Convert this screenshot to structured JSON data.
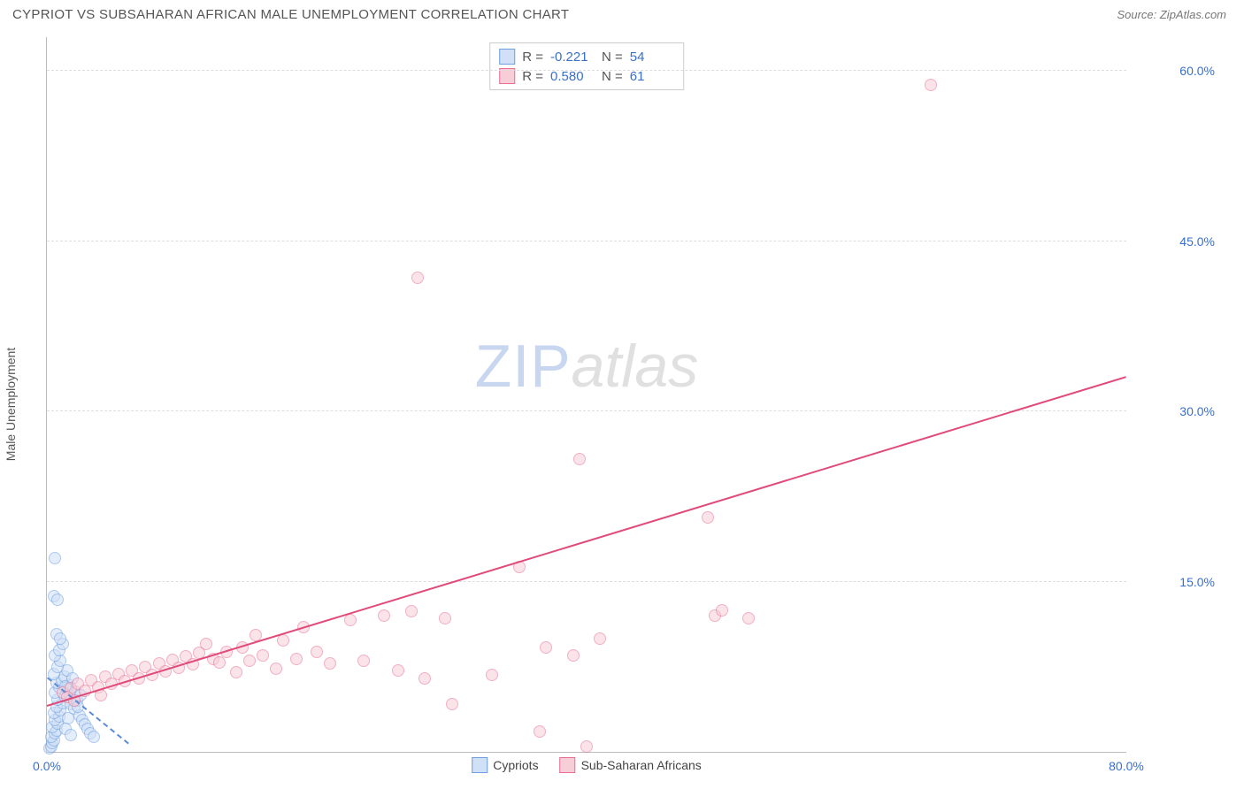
{
  "title": "CYPRIOT VS SUBSAHARAN AFRICAN MALE UNEMPLOYMENT CORRELATION CHART",
  "source_label": "Source: ZipAtlas.com",
  "ylabel": "Male Unemployment",
  "watermark": {
    "part1": "ZIP",
    "part2": "atlas"
  },
  "chart": {
    "type": "scatter",
    "xlim": [
      0,
      80
    ],
    "ylim": [
      0,
      63
    ],
    "xticks": [
      {
        "v": 0,
        "label": "0.0%"
      },
      {
        "v": 80,
        "label": "80.0%"
      }
    ],
    "yticks": [
      {
        "v": 15,
        "label": "15.0%"
      },
      {
        "v": 30,
        "label": "30.0%"
      },
      {
        "v": 45,
        "label": "45.0%"
      },
      {
        "v": 60,
        "label": "60.0%"
      }
    ],
    "background_color": "#ffffff",
    "grid_color": "#dddddd",
    "marker_radius": 7,
    "marker_border_width": 1.2,
    "series": [
      {
        "name": "Cypriots",
        "fill": "#cfe0f7",
        "stroke": "#6f9fe0",
        "fill_opacity": 0.55,
        "R_label": "R =",
        "R": "-0.221",
        "N_label": "N =",
        "N": "54",
        "trend": {
          "x1": 0,
          "y1": 6.3,
          "x2": 6,
          "y2": 0.5,
          "color": "#5b8ad6",
          "dash": true
        },
        "points": [
          [
            0.2,
            0.3
          ],
          [
            0.3,
            0.5
          ],
          [
            0.4,
            0.8
          ],
          [
            0.5,
            1.0
          ],
          [
            0.3,
            1.3
          ],
          [
            0.6,
            1.6
          ],
          [
            0.7,
            1.9
          ],
          [
            0.4,
            2.2
          ],
          [
            0.8,
            2.5
          ],
          [
            0.6,
            2.8
          ],
          [
            0.9,
            3.1
          ],
          [
            0.5,
            3.4
          ],
          [
            1.0,
            3.7
          ],
          [
            0.7,
            4.0
          ],
          [
            1.2,
            4.3
          ],
          [
            0.8,
            4.6
          ],
          [
            1.3,
            4.9
          ],
          [
            0.6,
            5.2
          ],
          [
            1.5,
            5.5
          ],
          [
            0.9,
            5.7
          ],
          [
            1.6,
            5.9
          ],
          [
            0.7,
            6.1
          ],
          [
            1.8,
            4.2
          ],
          [
            1.1,
            6.3
          ],
          [
            2.0,
            3.8
          ],
          [
            1.3,
            6.6
          ],
          [
            0.5,
            6.9
          ],
          [
            1.5,
            7.2
          ],
          [
            0.8,
            7.5
          ],
          [
            1.7,
            5.0
          ],
          [
            1.0,
            8.0
          ],
          [
            2.2,
            4.5
          ],
          [
            0.6,
            8.5
          ],
          [
            1.4,
            5.8
          ],
          [
            0.9,
            9.0
          ],
          [
            1.2,
            9.5
          ],
          [
            0.7,
            10.4
          ],
          [
            1.0,
            10.0
          ],
          [
            0.5,
            13.7
          ],
          [
            0.8,
            13.4
          ],
          [
            0.6,
            17.1
          ],
          [
            2.4,
            3.2
          ],
          [
            2.6,
            2.8
          ],
          [
            2.8,
            2.4
          ],
          [
            3.0,
            2.0
          ],
          [
            3.2,
            1.6
          ],
          [
            3.5,
            1.3
          ],
          [
            1.9,
            6.5
          ],
          [
            1.6,
            3.0
          ],
          [
            2.1,
            5.3
          ],
          [
            2.3,
            4.0
          ],
          [
            1.4,
            2.0
          ],
          [
            1.8,
            1.5
          ],
          [
            2.5,
            5.0
          ]
        ]
      },
      {
        "name": "Sub-Saharan Africans",
        "fill": "#f7cdd8",
        "stroke": "#e86f93",
        "fill_opacity": 0.55,
        "R_label": "R =",
        "R": "0.580",
        "N_label": "N =",
        "N": "61",
        "trend": {
          "x1": 0,
          "y1": 4.0,
          "x2": 80,
          "y2": 33.0,
          "color": "#e14b7a",
          "dash": false
        },
        "points": [
          [
            1.2,
            5.2
          ],
          [
            1.8,
            5.6
          ],
          [
            2.3,
            6.0
          ],
          [
            2.8,
            5.4
          ],
          [
            3.3,
            6.3
          ],
          [
            3.8,
            5.7
          ],
          [
            4.3,
            6.6
          ],
          [
            4.8,
            6.0
          ],
          [
            5.3,
            6.9
          ],
          [
            5.8,
            6.2
          ],
          [
            6.3,
            7.2
          ],
          [
            6.8,
            6.5
          ],
          [
            7.3,
            7.5
          ],
          [
            7.8,
            6.8
          ],
          [
            8.3,
            7.8
          ],
          [
            8.8,
            7.1
          ],
          [
            9.3,
            8.1
          ],
          [
            9.8,
            7.4
          ],
          [
            10.3,
            8.4
          ],
          [
            10.8,
            7.7
          ],
          [
            11.3,
            8.7
          ],
          [
            11.8,
            9.5
          ],
          [
            12.3,
            8.2
          ],
          [
            12.8,
            7.9
          ],
          [
            13.3,
            8.8
          ],
          [
            14.0,
            7.0
          ],
          [
            14.5,
            9.2
          ],
          [
            15.0,
            8.0
          ],
          [
            15.5,
            10.3
          ],
          [
            16.0,
            8.5
          ],
          [
            17.0,
            7.3
          ],
          [
            17.5,
            9.8
          ],
          [
            18.5,
            8.2
          ],
          [
            19.0,
            11.0
          ],
          [
            20.0,
            8.8
          ],
          [
            21.0,
            7.8
          ],
          [
            22.5,
            11.6
          ],
          [
            23.5,
            8.0
          ],
          [
            25.0,
            12.0
          ],
          [
            26.0,
            7.2
          ],
          [
            27.0,
            12.4
          ],
          [
            28.0,
            6.5
          ],
          [
            29.5,
            11.8
          ],
          [
            30.0,
            4.2
          ],
          [
            33.0,
            6.8
          ],
          [
            35.0,
            16.3
          ],
          [
            36.5,
            1.8
          ],
          [
            37.0,
            9.2
          ],
          [
            39.5,
            25.8
          ],
          [
            39.0,
            8.5
          ],
          [
            40.0,
            0.5
          ],
          [
            41.0,
            10.0
          ],
          [
            49.0,
            20.7
          ],
          [
            49.5,
            12.0
          ],
          [
            50.0,
            12.5
          ],
          [
            52.0,
            11.8
          ],
          [
            65.5,
            58.8
          ],
          [
            27.5,
            41.8
          ],
          [
            1.5,
            4.8
          ],
          [
            2.0,
            4.5
          ],
          [
            4.0,
            5.0
          ]
        ]
      }
    ]
  }
}
